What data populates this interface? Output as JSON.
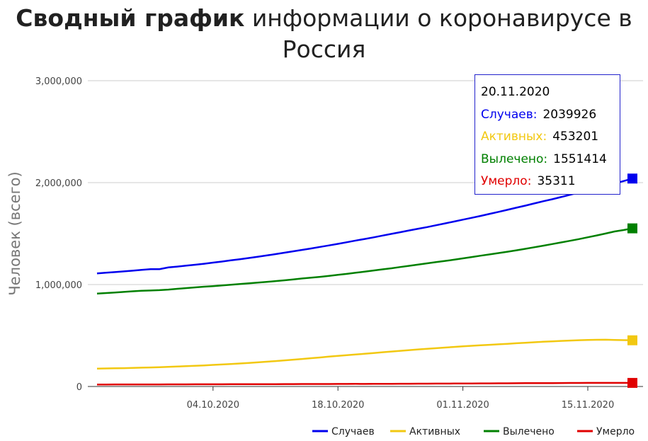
{
  "title": {
    "bold": "Сводный график",
    "rest": " информации о коронавирусе в Россия"
  },
  "chart_data": {
    "type": "line",
    "ylabel": "Человек (всего)",
    "ylim": [
      0,
      3000000
    ],
    "y_ticks": [
      "3,000,000",
      "2,000,000",
      "1,000,000",
      "0"
    ],
    "y_tick_values": [
      3000000,
      2000000,
      1000000,
      0
    ],
    "x_ticks": [
      "04.10.2020",
      "18.10.2020",
      "01.11.2020",
      "15.11.2020"
    ],
    "x": [
      "21.09.2020",
      "22.09.2020",
      "23.09.2020",
      "24.09.2020",
      "25.09.2020",
      "26.09.2020",
      "27.09.2020",
      "28.09.2020",
      "29.09.2020",
      "30.09.2020",
      "01.10.2020",
      "02.10.2020",
      "03.10.2020",
      "04.10.2020",
      "05.10.2020",
      "06.10.2020",
      "07.10.2020",
      "08.10.2020",
      "09.10.2020",
      "10.10.2020",
      "11.10.2020",
      "12.10.2020",
      "13.10.2020",
      "14.10.2020",
      "15.10.2020",
      "16.10.2020",
      "17.10.2020",
      "18.10.2020",
      "19.10.2020",
      "20.10.2020",
      "21.10.2020",
      "22.10.2020",
      "23.10.2020",
      "24.10.2020",
      "25.10.2020",
      "26.10.2020",
      "27.10.2020",
      "28.10.2020",
      "29.10.2020",
      "30.10.2020",
      "31.10.2020",
      "01.11.2020",
      "02.11.2020",
      "03.11.2020",
      "04.11.2020",
      "05.11.2020",
      "06.11.2020",
      "07.11.2020",
      "08.11.2020",
      "09.11.2020",
      "10.11.2020",
      "11.11.2020",
      "12.11.2020",
      "13.11.2020",
      "14.11.2020",
      "15.11.2020",
      "16.11.2020",
      "17.11.2020",
      "18.11.2020",
      "19.11.2020",
      "20.11.2020"
    ],
    "series": [
      {
        "name": "Случаев",
        "color": "#0000ee",
        "values": [
          1109595,
          1115810,
          1122241,
          1128836,
          1136048,
          1143571,
          1151438,
          1151438,
          1167805,
          1176286,
          1185231,
          1194643,
          1204502,
          1215001,
          1225889,
          1237504,
          1248619,
          1260112,
          1272238,
          1285084,
          1298718,
          1312310,
          1326178,
          1340409,
          1354163,
          1369313,
          1384235,
          1399334,
          1415316,
          1431635,
          1447335,
          1463306,
          1480646,
          1497167,
          1513877,
          1531224,
          1547774,
          1563976,
          1581693,
          1599976,
          1618116,
          1636781,
          1655038,
          1673686,
          1693454,
          1712858,
          1733440,
          1753836,
          1774334,
          1795504,
          1817109,
          1836960,
          1858568,
          1880551,
          1901805,
          1925825,
          1948603,
          1971013,
          1991998,
          2015608,
          2039926
        ]
      },
      {
        "name": "Активных",
        "color": "#f2c811",
        "values": [
          176000,
          177000,
          178500,
          180000,
          182000,
          184500,
          187000,
          189500,
          192500,
          195500,
          199000,
          203000,
          207000,
          211500,
          216000,
          221000,
          226000,
          231500,
          237000,
          243000,
          249500,
          256000,
          263000,
          270000,
          277500,
          285000,
          293000,
          300000,
          307000,
          314000,
          321000,
          328500,
          336000,
          343000,
          350000,
          357000,
          364000,
          370000,
          376000,
          382000,
          388000,
          394000,
          399000,
          404000,
          409000,
          414000,
          419000,
          424000,
          429000,
          434000,
          439000,
          443000,
          447000,
          451000,
          454000,
          456000,
          458000,
          459000,
          457000,
          455000,
          453201
        ]
      },
      {
        "name": "Вылечено",
        "color": "#008000",
        "values": [
          912000,
          917000,
          922500,
          928000,
          934000,
          939500,
          942000,
          945000,
          951000,
          958000,
          965000,
          972000,
          979000,
          985000,
          991000,
          998000,
          1005000,
          1012000,
          1019000,
          1026000,
          1034000,
          1042000,
          1051000,
          1060000,
          1068000,
          1076000,
          1085000,
          1095000,
          1105000,
          1116000,
          1127000,
          1138000,
          1149000,
          1160000,
          1172000,
          1184000,
          1196000,
          1208000,
          1220000,
          1232000,
          1244000,
          1257000,
          1270000,
          1283000,
          1296000,
          1309000,
          1322000,
          1336000,
          1351000,
          1366000,
          1381000,
          1397000,
          1413000,
          1429000,
          1446000,
          1464000,
          1482000,
          1501000,
          1521000,
          1535000,
          1551414
        ]
      },
      {
        "name": "Умерло",
        "color": "#e00000",
        "values": [
          19489,
          19649,
          19799,
          19948,
          20056,
          20225,
          20385,
          20385,
          20722,
          20891,
          21077,
          21251,
          21475,
          21663,
          21865,
          22056,
          22257,
          22454,
          22722,
          22966,
          23205,
          23491,
          23723,
          23998,
          24187,
          24473,
          24635,
          24952,
          25242,
          25525,
          25242,
          26050,
          26269,
          26589,
          26935,
          27301,
          27656,
          27990,
          28235,
          28644,
          29068,
          29509,
          29887,
          30251,
          30793,
          31161,
          31593,
          32032,
          32443,
          32885,
          33186,
          33492,
          33931,
          34387,
          34850,
          35311,
          35311,
          35311,
          35311,
          35311,
          35311
        ]
      }
    ],
    "legend": "bottom-right",
    "grid": true
  },
  "tooltip": {
    "date": "20.11.2020",
    "rows": [
      {
        "label": "Случаев:",
        "value": "2039926",
        "color": "#0000ee"
      },
      {
        "label": "Активных:",
        "value": "453201",
        "color": "#f2c811"
      },
      {
        "label": "Вылечено:",
        "value": "1551414",
        "color": "#008000"
      },
      {
        "label": "Умерло:",
        "value": "35311",
        "color": "#e00000"
      }
    ]
  }
}
